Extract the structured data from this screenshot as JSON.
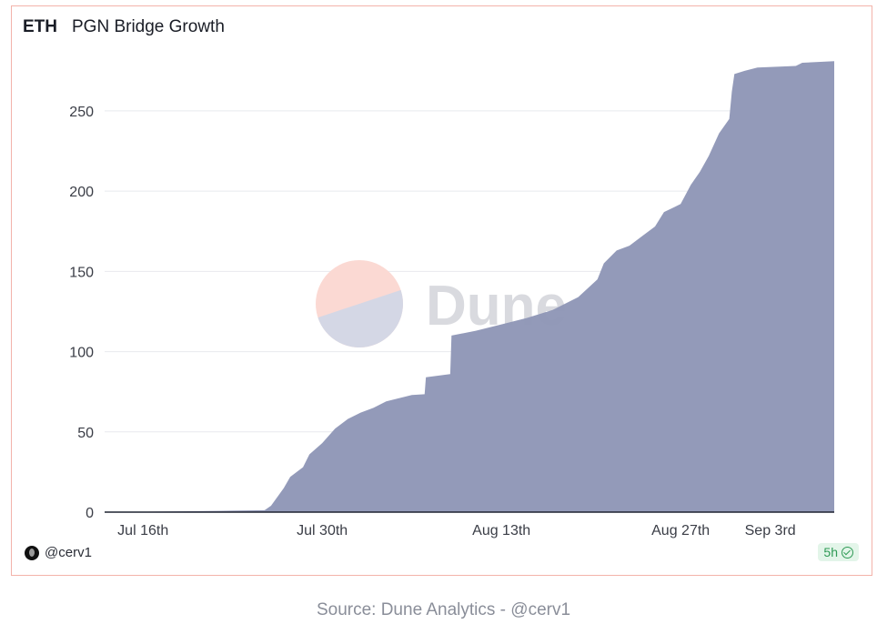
{
  "card": {
    "title_tag": "ETH",
    "title": "PGN Bridge Growth",
    "author": "@cerv1",
    "age_badge": "5h",
    "watermark": "Dune"
  },
  "source": "Source: Dune Analytics - @cerv1",
  "colors": {
    "area": "#8f97b7",
    "grid": "#e8e9ee",
    "border": "#f3b3aa",
    "badge_bg": "#e3f5e9",
    "badge_fg": "#2f9a55",
    "watermark_pink": "#fbd9d3",
    "watermark_lavender": "#d4d7e5",
    "watermark_text": "#d9dadf"
  },
  "icons": [
    "avatar-icon",
    "check-circle-icon"
  ],
  "chart_data": {
    "type": "area",
    "title": "PGN Bridge Growth",
    "xlabel": "",
    "ylabel": "",
    "ylim": [
      0,
      280
    ],
    "yticks": [
      0,
      50,
      100,
      150,
      200,
      250
    ],
    "xlim": [
      "2023-07-13",
      "2023-09-08"
    ],
    "xticks": [
      {
        "date": "2023-07-16",
        "label": "Jul 16th"
      },
      {
        "date": "2023-07-30",
        "label": "Jul 30th"
      },
      {
        "date": "2023-08-13",
        "label": "Aug 13th"
      },
      {
        "date": "2023-08-27",
        "label": "Aug 27th"
      },
      {
        "date": "2023-09-03",
        "label": "Sep 3rd"
      }
    ],
    "grid": true,
    "legend": "none",
    "series": [
      {
        "points": [
          [
            "2023-07-13",
            0
          ],
          [
            "2023-07-18",
            0.4
          ],
          [
            "2023-07-22",
            0.8
          ],
          [
            "2023-07-25.5",
            1.2
          ],
          [
            "2023-07-26",
            4
          ],
          [
            "2023-07-27",
            15
          ],
          [
            "2023-07-27.5",
            22
          ],
          [
            "2023-07-28.5",
            28
          ],
          [
            "2023-07-29",
            36
          ],
          [
            "2023-07-30",
            43
          ],
          [
            "2023-07-31",
            52
          ],
          [
            "2023-08-01",
            58
          ],
          [
            "2023-08-02",
            62
          ],
          [
            "2023-08-03",
            65
          ],
          [
            "2023-08-04",
            69
          ],
          [
            "2023-08-05",
            71
          ],
          [
            "2023-08-06",
            73
          ],
          [
            "2023-08-07",
            73.5
          ],
          [
            "2023-08-07.1",
            84
          ],
          [
            "2023-08-09",
            86
          ],
          [
            "2023-08-09.1",
            110
          ],
          [
            "2023-08-11",
            113
          ],
          [
            "2023-08-13",
            117
          ],
          [
            "2023-08-15",
            121
          ],
          [
            "2023-08-17",
            126
          ],
          [
            "2023-08-19",
            134
          ],
          [
            "2023-08-20.5",
            145
          ],
          [
            "2023-08-21",
            155
          ],
          [
            "2023-08-22",
            163
          ],
          [
            "2023-08-23",
            166
          ],
          [
            "2023-08-24",
            172
          ],
          [
            "2023-08-25",
            178
          ],
          [
            "2023-08-25.7",
            187
          ],
          [
            "2023-08-26.5",
            190
          ],
          [
            "2023-08-27",
            192
          ],
          [
            "2023-08-27.8",
            204
          ],
          [
            "2023-08-28.5",
            212
          ],
          [
            "2023-08-29.2",
            222
          ],
          [
            "2023-08-30",
            236
          ],
          [
            "2023-08-30.8",
            245
          ],
          [
            "2023-08-31",
            262
          ],
          [
            "2023-08-31.2",
            273
          ],
          [
            "2023-09-01",
            275
          ],
          [
            "2023-09-02",
            277
          ],
          [
            "2023-09-05",
            278
          ],
          [
            "2023-09-05.5",
            280
          ],
          [
            "2023-09-08",
            281
          ]
        ]
      }
    ]
  }
}
